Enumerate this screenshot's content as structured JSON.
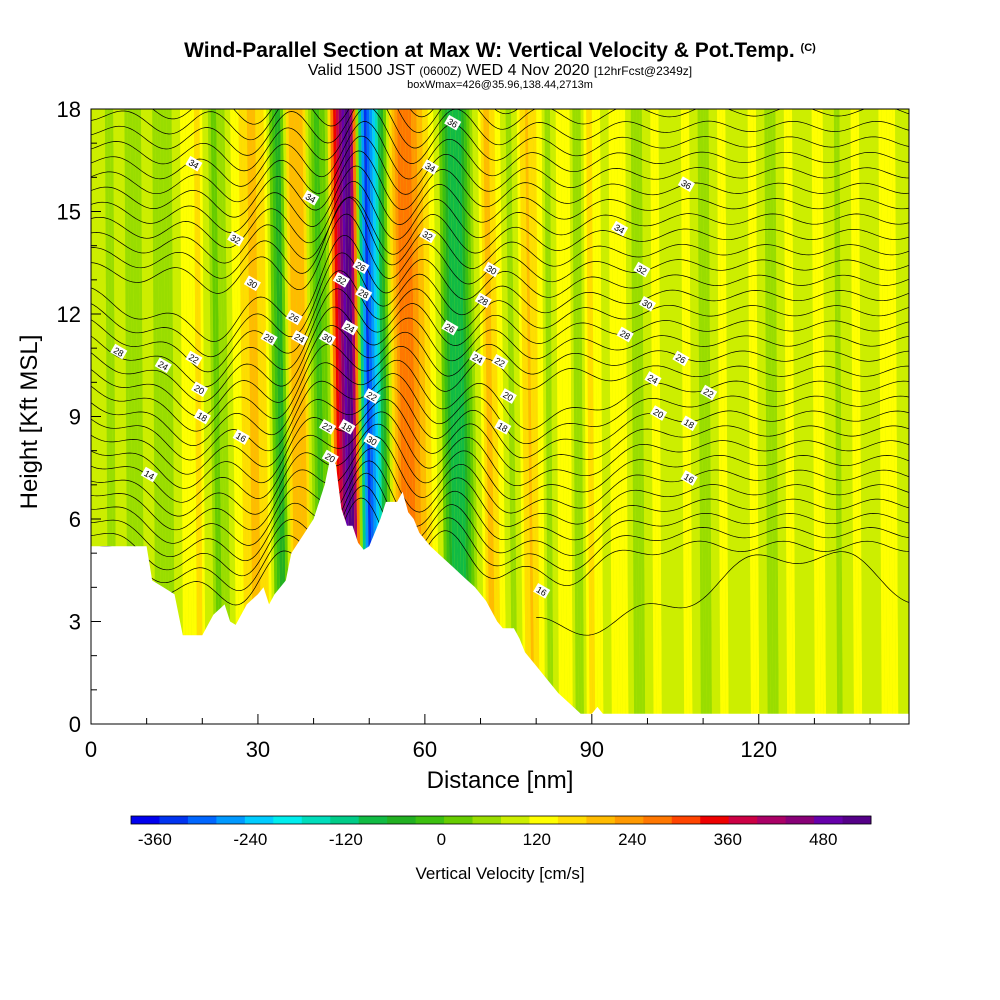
{
  "header": {
    "title": "Wind-Parallel Section at Max W: Vertical Velocity & Pot.Temp.",
    "copyright": "(C)",
    "valid_a": "Valid 1500 JST",
    "valid_utc": "(0600Z)",
    "valid_b": "WED 4 Nov 2020",
    "fcst": "[12hrFcst@2349z]",
    "box_info": "boxWmax=426@35.96,138.44,2713m"
  },
  "chart_data": {
    "type": "heatmap",
    "xlabel": "Distance [nm]",
    "ylabel": "Height [Kft MSL]",
    "xlim": [
      0,
      147
    ],
    "ylim": [
      0,
      18
    ],
    "x_ticks": [
      0,
      30,
      60,
      90,
      120
    ],
    "y_ticks": [
      0,
      3,
      6,
      9,
      12,
      15,
      18
    ],
    "colorbar": {
      "label": "Vertical Velocity [cm/s]",
      "tick_labels": [
        "-360",
        "-240",
        "-120",
        "0",
        "120",
        "240",
        "360",
        "480"
      ],
      "range": [
        -390,
        540
      ],
      "step": 30,
      "colors": [
        "#0000ee",
        "#0033f0",
        "#0066ff",
        "#0099ff",
        "#00ccff",
        "#00eeee",
        "#00ddbb",
        "#00cc88",
        "#11bb44",
        "#22b022",
        "#3cc010",
        "#66cc00",
        "#99dd00",
        "#ccee00",
        "#ffff00",
        "#ffdd00",
        "#ffbb00",
        "#ff9900",
        "#ff7700",
        "#ff4400",
        "#ee0000",
        "#cc0044",
        "#aa0066",
        "#880077",
        "#6600aa",
        "#550088"
      ]
    },
    "terrain_top_kft": [
      [
        0,
        5.2
      ],
      [
        10,
        5.2
      ],
      [
        11,
        4.2
      ],
      [
        13,
        4.0
      ],
      [
        15,
        3.8
      ],
      [
        16,
        3.0
      ],
      [
        16.5,
        2.6
      ],
      [
        20,
        2.6
      ],
      [
        21,
        2.9
      ],
      [
        22,
        3.2
      ],
      [
        24,
        3.5
      ],
      [
        25,
        3.0
      ],
      [
        26,
        2.9
      ],
      [
        28,
        3.5
      ],
      [
        30,
        3.8
      ],
      [
        31,
        4.0
      ],
      [
        32,
        3.5
      ],
      [
        33,
        3.8
      ],
      [
        35,
        4.2
      ],
      [
        36,
        5.0
      ],
      [
        38,
        5.5
      ],
      [
        40,
        6.0
      ],
      [
        42,
        7.0
      ],
      [
        43,
        7.8
      ],
      [
        44,
        7.6
      ],
      [
        45,
        6.3
      ],
      [
        46,
        5.8
      ],
      [
        47,
        5.8
      ],
      [
        48,
        5.3
      ],
      [
        49,
        5.1
      ],
      [
        50,
        5.2
      ],
      [
        52,
        6.0
      ],
      [
        53,
        6.5
      ],
      [
        55,
        6.5
      ],
      [
        56,
        6.8
      ],
      [
        57,
        6.2
      ],
      [
        58,
        6.0
      ],
      [
        59,
        5.6
      ],
      [
        61,
        5.2
      ],
      [
        63,
        4.9
      ],
      [
        65,
        4.6
      ],
      [
        67,
        4.3
      ],
      [
        69,
        4.0
      ],
      [
        71,
        3.6
      ],
      [
        73,
        3.0
      ],
      [
        74,
        2.8
      ],
      [
        76,
        2.8
      ],
      [
        77,
        2.5
      ],
      [
        78,
        2.1
      ],
      [
        80,
        1.7
      ],
      [
        82,
        1.3
      ],
      [
        84,
        0.9
      ],
      [
        86,
        0.6
      ],
      [
        88,
        0.3
      ],
      [
        90,
        0.3
      ],
      [
        91,
        0.5
      ],
      [
        92,
        0.3
      ],
      [
        93,
        0.3
      ],
      [
        147,
        0.3
      ]
    ],
    "bands": [
      {
        "x": 0,
        "w": 2.0
      },
      {
        "x": 3,
        "w": -0.5
      },
      {
        "x": 5,
        "w": 0.5
      },
      {
        "x": 8,
        "w": -1.0
      },
      {
        "x": 10,
        "w": 0.6
      },
      {
        "x": 13,
        "w": -1.2
      },
      {
        "x": 16,
        "w": 1.5
      },
      {
        "x": 19,
        "w": 3.0
      },
      {
        "x": 22,
        "w": -1.8
      },
      {
        "x": 25,
        "w": 1.2
      },
      {
        "x": 28.5,
        "w": 4.0
      },
      {
        "x": 31,
        "w": 2.0
      },
      {
        "x": 33.5,
        "w": -4.5
      },
      {
        "x": 35.5,
        "w": 3.5
      },
      {
        "x": 37.5,
        "w": 4.0
      },
      {
        "x": 40,
        "w": -2.5
      },
      {
        "x": 42,
        "w": -1.5
      },
      {
        "x": 43.5,
        "w": 6.0
      },
      {
        "x": 45,
        "w": 10.5
      },
      {
        "x": 46,
        "w": 12.5
      },
      {
        "x": 47,
        "w": 8.0
      },
      {
        "x": 48,
        "w": -3.0
      },
      {
        "x": 49,
        "w": -11.0
      },
      {
        "x": 50.5,
        "w": -9.0
      },
      {
        "x": 52,
        "w": -4.0
      },
      {
        "x": 54,
        "w": 3.5
      },
      {
        "x": 56,
        "w": 6.0
      },
      {
        "x": 58,
        "w": 5.0
      },
      {
        "x": 60,
        "w": 2.5
      },
      {
        "x": 62,
        "w": 0.8
      },
      {
        "x": 64,
        "w": -5.0
      },
      {
        "x": 66,
        "w": -5.5
      },
      {
        "x": 68,
        "w": -1.5
      },
      {
        "x": 71,
        "w": 4.5
      },
      {
        "x": 73,
        "w": 2.0
      },
      {
        "x": 75,
        "w": -1.0
      },
      {
        "x": 78,
        "w": 4.5
      },
      {
        "x": 80,
        "w": 3.0
      },
      {
        "x": 82,
        "w": -1.0
      },
      {
        "x": 84.5,
        "w": 3.5
      },
      {
        "x": 87,
        "w": -1.2
      },
      {
        "x": 89.5,
        "w": 2.5
      },
      {
        "x": 92,
        "w": 0.5
      },
      {
        "x": 95,
        "w": 1.8
      },
      {
        "x": 98,
        "w": -1.0
      },
      {
        "x": 101,
        "w": 1.5
      },
      {
        "x": 104,
        "w": 0.2
      },
      {
        "x": 107,
        "w": 1.3
      },
      {
        "x": 110,
        "w": -0.8
      },
      {
        "x": 113,
        "w": 1.4
      },
      {
        "x": 116,
        "w": 0.3
      },
      {
        "x": 119,
        "w": 1.3
      },
      {
        "x": 122,
        "w": -0.5
      },
      {
        "x": 125,
        "w": 1.2
      },
      {
        "x": 128,
        "w": 0.5
      },
      {
        "x": 131,
        "w": 1.4
      },
      {
        "x": 134,
        "w": -0.3
      },
      {
        "x": 137,
        "w": 1.2
      },
      {
        "x": 140,
        "w": 0.4
      },
      {
        "x": 143,
        "w": 1.5
      },
      {
        "x": 146,
        "w": 0.6
      }
    ],
    "contour_labels": [
      {
        "x": 18.5,
        "y": 16.4,
        "text": "34"
      },
      {
        "x": 39.5,
        "y": 15.4,
        "text": "34"
      },
      {
        "x": 65,
        "y": 17.6,
        "text": "36"
      },
      {
        "x": 61,
        "y": 16.3,
        "text": "34"
      },
      {
        "x": 107,
        "y": 15.8,
        "text": "36"
      },
      {
        "x": 26,
        "y": 14.2,
        "text": "32"
      },
      {
        "x": 60.5,
        "y": 14.3,
        "text": "32"
      },
      {
        "x": 95,
        "y": 14.5,
        "text": "34"
      },
      {
        "x": 48.5,
        "y": 13.4,
        "text": "26"
      },
      {
        "x": 45,
        "y": 13.0,
        "text": "32"
      },
      {
        "x": 72,
        "y": 13.3,
        "text": "30"
      },
      {
        "x": 99,
        "y": 13.3,
        "text": "32"
      },
      {
        "x": 29,
        "y": 12.9,
        "text": "30"
      },
      {
        "x": 49,
        "y": 12.6,
        "text": "28"
      },
      {
        "x": 70.5,
        "y": 12.4,
        "text": "28"
      },
      {
        "x": 100,
        "y": 12.3,
        "text": "30"
      },
      {
        "x": 36.5,
        "y": 11.9,
        "text": "26"
      },
      {
        "x": 46.5,
        "y": 11.6,
        "text": "24"
      },
      {
        "x": 64.5,
        "y": 11.6,
        "text": "26"
      },
      {
        "x": 32,
        "y": 11.3,
        "text": "28"
      },
      {
        "x": 37.5,
        "y": 11.3,
        "text": "24"
      },
      {
        "x": 42.5,
        "y": 11.3,
        "text": "30"
      },
      {
        "x": 96,
        "y": 11.4,
        "text": "28"
      },
      {
        "x": 5,
        "y": 10.9,
        "text": "28"
      },
      {
        "x": 18.5,
        "y": 10.7,
        "text": "22"
      },
      {
        "x": 106,
        "y": 10.7,
        "text": "26"
      },
      {
        "x": 13,
        "y": 10.5,
        "text": "24"
      },
      {
        "x": 69.5,
        "y": 10.7,
        "text": "24"
      },
      {
        "x": 73.5,
        "y": 10.6,
        "text": "22"
      },
      {
        "x": 101,
        "y": 10.1,
        "text": "24"
      },
      {
        "x": 19.5,
        "y": 9.8,
        "text": "20"
      },
      {
        "x": 50.5,
        "y": 9.6,
        "text": "22"
      },
      {
        "x": 75,
        "y": 9.6,
        "text": "20"
      },
      {
        "x": 111,
        "y": 9.7,
        "text": "22"
      },
      {
        "x": 20,
        "y": 9.0,
        "text": "18"
      },
      {
        "x": 102,
        "y": 9.1,
        "text": "20"
      },
      {
        "x": 42.5,
        "y": 8.7,
        "text": "22"
      },
      {
        "x": 46,
        "y": 8.7,
        "text": "18"
      },
      {
        "x": 74,
        "y": 8.7,
        "text": "18"
      },
      {
        "x": 107.5,
        "y": 8.8,
        "text": "18"
      },
      {
        "x": 50.5,
        "y": 8.3,
        "text": "30"
      },
      {
        "x": 27,
        "y": 8.4,
        "text": "16"
      },
      {
        "x": 43,
        "y": 7.8,
        "text": "20"
      },
      {
        "x": 10.5,
        "y": 7.3,
        "text": "14"
      },
      {
        "x": 107.5,
        "y": 7.2,
        "text": "16"
      },
      {
        "x": 81,
        "y": 3.9,
        "text": "16"
      }
    ]
  }
}
